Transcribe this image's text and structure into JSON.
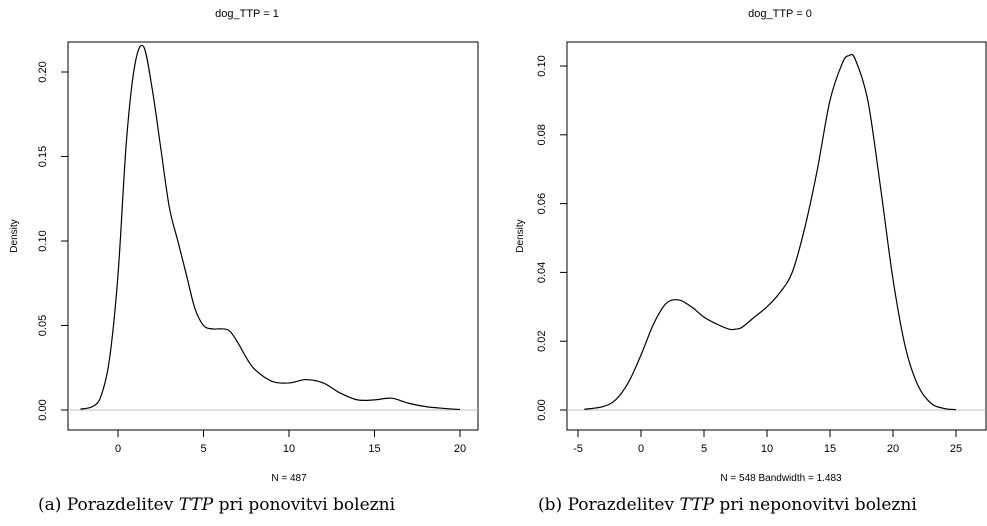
{
  "chart_data": [
    {
      "type": "area",
      "title": "dog_TTP = 1",
      "xlabel": "N = 487",
      "ylabel": "Density",
      "xlim": [
        -3,
        21
      ],
      "ylim": [
        0,
        0.22
      ],
      "xticks": [
        "0",
        "5",
        "10",
        "15",
        "20"
      ],
      "yticks": [
        "0.00",
        "0.05",
        "0.10",
        "0.15",
        "0.20"
      ],
      "series": [
        {
          "x": [
            -2.2,
            -1.5,
            -1.0,
            -0.5,
            0.0,
            0.5,
            1.0,
            1.5,
            2.0,
            2.5,
            3.0,
            3.5,
            4.0,
            4.5,
            5.0,
            5.5,
            6.0,
            6.5,
            7.0,
            7.5,
            8.0,
            9.0,
            10.0,
            11.0,
            12.0,
            13.0,
            14.0,
            15.0,
            16.0,
            17.0,
            18.0,
            19.0,
            20.0
          ],
          "y": [
            0.0005,
            0.002,
            0.008,
            0.03,
            0.08,
            0.16,
            0.205,
            0.215,
            0.19,
            0.155,
            0.12,
            0.1,
            0.08,
            0.06,
            0.05,
            0.048,
            0.048,
            0.047,
            0.04,
            0.031,
            0.024,
            0.017,
            0.016,
            0.018,
            0.016,
            0.01,
            0.006,
            0.006,
            0.007,
            0.004,
            0.002,
            0.001,
            0.0003
          ]
        }
      ]
    },
    {
      "type": "area",
      "title": "dog_TTP = 0",
      "xlabel": "N = 548   Bandwidth = 1.483",
      "ylabel": "Density",
      "xlim": [
        -5,
        27
      ],
      "ylim": [
        0,
        0.105
      ],
      "xticks": [
        "-5",
        "0",
        "5",
        "10",
        "15",
        "20",
        "25"
      ],
      "yticks": [
        "0.00",
        "0.02",
        "0.04",
        "0.06",
        "0.08",
        "0.10"
      ],
      "series": [
        {
          "x": [
            -4.5,
            -3.0,
            -2.0,
            -1.0,
            0.0,
            1.0,
            2.0,
            3.0,
            4.0,
            5.0,
            6.0,
            7.0,
            7.5,
            8.0,
            9.0,
            10.0,
            11.0,
            12.0,
            13.0,
            14.0,
            15.0,
            16.0,
            16.5,
            17.0,
            18.0,
            19.0,
            20.0,
            21.0,
            22.0,
            23.0,
            24.0,
            25.0
          ],
          "y": [
            0.0002,
            0.001,
            0.003,
            0.008,
            0.016,
            0.025,
            0.031,
            0.032,
            0.03,
            0.027,
            0.025,
            0.0235,
            0.0235,
            0.024,
            0.027,
            0.03,
            0.034,
            0.04,
            0.053,
            0.07,
            0.09,
            0.101,
            0.103,
            0.102,
            0.09,
            0.065,
            0.038,
            0.018,
            0.007,
            0.002,
            0.0005,
            0.0001
          ]
        }
      ]
    }
  ],
  "captions": [
    {
      "label": "(a)",
      "pre": "Porazdelitev",
      "var": "TTP",
      "post": "pri ponovitvi bolezni"
    },
    {
      "label": "(b)",
      "pre": "Porazdelitev",
      "var": "TTP",
      "post": "pri neponovitvi bolezni"
    }
  ],
  "colors": {
    "curve": "#000000",
    "baseline": "#bdbdbd",
    "frame": "#000000"
  }
}
